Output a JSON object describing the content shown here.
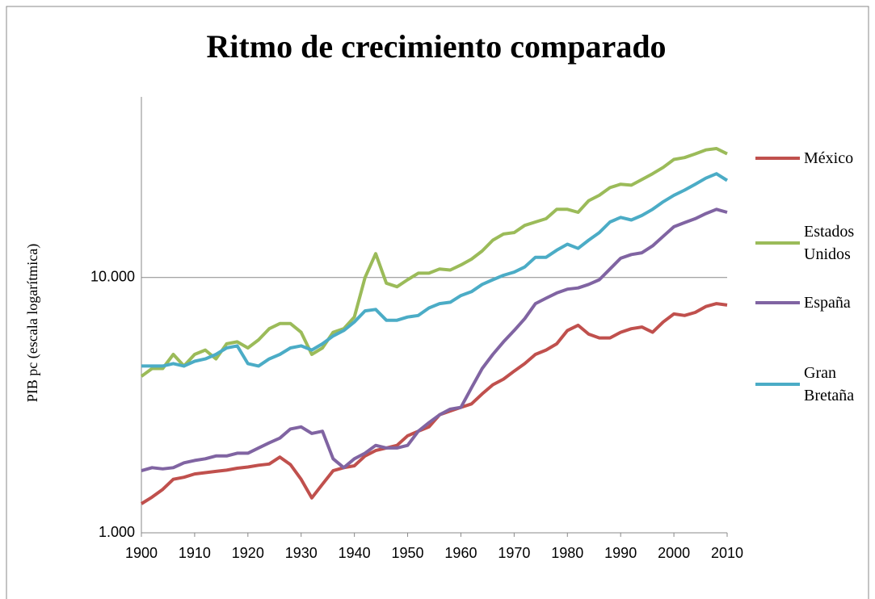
{
  "chart_data": {
    "type": "line",
    "title": "Ritmo de crecimiento comparado",
    "y_label": "PIB pc (escala logarítmica)",
    "log_y": true,
    "grid": true,
    "legend": "right",
    "xlim": [
      1900,
      2010
    ],
    "xticks": [
      1900,
      1910,
      1920,
      1930,
      1940,
      1950,
      1960,
      1970,
      1980,
      1990,
      2000,
      2010
    ],
    "ylim": [
      1000,
      51000
    ],
    "yticks": [
      {
        "value": 1000,
        "label": "1.000"
      },
      {
        "value": 10000,
        "label": "10.000"
      }
    ],
    "x": [
      1900,
      1902,
      1904,
      1906,
      1908,
      1910,
      1912,
      1914,
      1916,
      1918,
      1920,
      1922,
      1924,
      1926,
      1928,
      1930,
      1932,
      1934,
      1936,
      1938,
      1940,
      1942,
      1944,
      1946,
      1948,
      1950,
      1952,
      1954,
      1956,
      1958,
      1960,
      1962,
      1964,
      1966,
      1968,
      1970,
      1972,
      1974,
      1976,
      1978,
      1980,
      1982,
      1984,
      1986,
      1988,
      1990,
      1992,
      1994,
      1996,
      1998,
      2000,
      2002,
      2004,
      2006,
      2008,
      2010
    ],
    "series": [
      {
        "name": "México",
        "color": "#c0504d",
        "values": [
          1300,
          1380,
          1480,
          1620,
          1650,
          1700,
          1720,
          1740,
          1760,
          1790,
          1810,
          1840,
          1860,
          1980,
          1850,
          1620,
          1370,
          1550,
          1750,
          1800,
          1830,
          2000,
          2100,
          2150,
          2200,
          2400,
          2500,
          2600,
          2900,
          3000,
          3100,
          3200,
          3500,
          3800,
          4000,
          4300,
          4600,
          5000,
          5200,
          5500,
          6200,
          6500,
          6000,
          5800,
          5800,
          6100,
          6300,
          6400,
          6100,
          6700,
          7200,
          7100,
          7300,
          7700,
          7900,
          7800
        ]
      },
      {
        "name": "Estados Unidos",
        "color": "#9bbb59",
        "values": [
          4100,
          4400,
          4400,
          5000,
          4500,
          5000,
          5200,
          4800,
          5500,
          5600,
          5300,
          5700,
          6300,
          6600,
          6600,
          6100,
          5000,
          5300,
          6100,
          6300,
          7000,
          10000,
          12400,
          9500,
          9200,
          9800,
          10400,
          10400,
          10800,
          10700,
          11200,
          11800,
          12700,
          14000,
          14800,
          15000,
          16000,
          16500,
          17000,
          18500,
          18500,
          18000,
          20000,
          21000,
          22500,
          23200,
          23000,
          24200,
          25500,
          27000,
          29000,
          29500,
          30500,
          31600,
          32000,
          30500
        ]
      },
      {
        "name": "España",
        "color": "#8064a2",
        "values": [
          1750,
          1800,
          1780,
          1800,
          1880,
          1920,
          1950,
          2000,
          2000,
          2050,
          2050,
          2150,
          2250,
          2350,
          2550,
          2600,
          2450,
          2500,
          1950,
          1800,
          1950,
          2050,
          2200,
          2150,
          2150,
          2200,
          2500,
          2700,
          2900,
          3050,
          3100,
          3700,
          4400,
          5000,
          5600,
          6200,
          6900,
          7900,
          8300,
          8700,
          9000,
          9100,
          9400,
          9800,
          10800,
          11900,
          12300,
          12500,
          13300,
          14500,
          15800,
          16400,
          17000,
          17800,
          18500,
          18000
        ]
      },
      {
        "name": "Gran Bretaña",
        "color": "#4bacc6",
        "values": [
          4500,
          4500,
          4500,
          4600,
          4500,
          4700,
          4800,
          5000,
          5300,
          5400,
          4600,
          4500,
          4800,
          5000,
          5300,
          5400,
          5200,
          5500,
          5900,
          6200,
          6700,
          7400,
          7500,
          6800,
          6800,
          7000,
          7100,
          7600,
          7900,
          8000,
          8500,
          8800,
          9400,
          9800,
          10200,
          10500,
          11000,
          12000,
          12000,
          12800,
          13500,
          13000,
          14000,
          15000,
          16500,
          17200,
          16800,
          17500,
          18500,
          19800,
          21000,
          22000,
          23200,
          24500,
          25500,
          24000
        ]
      }
    ]
  }
}
